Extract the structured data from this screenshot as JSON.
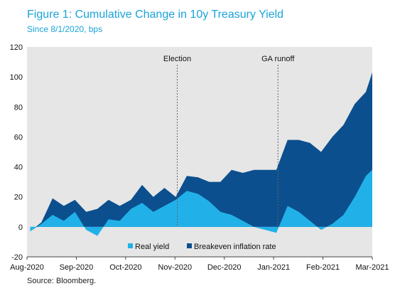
{
  "title": "Figure 1: Cumulative Change in 10y Treasury Yield",
  "subtitle": "Since 8/1/2020,  bps",
  "source": "Source: Bloomberg.",
  "colors": {
    "real_yield": "#21b1e8",
    "breakeven": "#0b4f8e",
    "plot_bg": "#e6e6e6",
    "title": "#1aa3d9"
  },
  "chart_data": {
    "type": "area",
    "title": "Figure 1: Cumulative Change in 10y Treasury Yield",
    "subtitle": "Since 8/1/2020,  bps",
    "xlabel": "",
    "ylabel": "",
    "ylim": [
      -20,
      120
    ],
    "yticks": [
      -20,
      0,
      20,
      40,
      60,
      80,
      100,
      120
    ],
    "xticks": [
      "Aug-2020",
      "Sep-2020",
      "Oct-2020",
      "Nov-2020",
      "Dec-2020",
      "Jan-2021",
      "Feb-2021",
      "Mar-2021"
    ],
    "xlim": [
      "2020-08-01",
      "2021-03-05"
    ],
    "grid": false,
    "legend": "bottom-center",
    "annotations": [
      {
        "label": "Election",
        "x": "2020-11-03"
      },
      {
        "label": "GA runoff",
        "x": "2021-01-05"
      }
    ],
    "x": [
      "2020-08-03",
      "2020-08-10",
      "2020-08-17",
      "2020-08-24",
      "2020-08-31",
      "2020-09-07",
      "2020-09-14",
      "2020-09-21",
      "2020-09-28",
      "2020-10-05",
      "2020-10-12",
      "2020-10-19",
      "2020-10-26",
      "2020-11-02",
      "2020-11-09",
      "2020-11-16",
      "2020-11-23",
      "2020-11-30",
      "2020-12-07",
      "2020-12-14",
      "2020-12-21",
      "2020-12-28",
      "2021-01-04",
      "2021-01-11",
      "2021-01-18",
      "2021-01-25",
      "2021-02-01",
      "2021-02-08",
      "2021-02-15",
      "2021-02-22",
      "2021-03-01",
      "2021-03-05"
    ],
    "series": [
      {
        "name": "Real yield",
        "values": [
          -3,
          2,
          8,
          4,
          10,
          -2,
          -6,
          5,
          4,
          12,
          16,
          10,
          14,
          18,
          24,
          22,
          17,
          10,
          8,
          4,
          0,
          -2,
          -4,
          14,
          10,
          4,
          -2,
          2,
          8,
          20,
          34,
          38
        ]
      },
      {
        "name": "Breakeven inflation rate",
        "values": [
          -3,
          3,
          19,
          14,
          18,
          10,
          12,
          18,
          14,
          18,
          28,
          20,
          26,
          20,
          34,
          33,
          30,
          30,
          38,
          36,
          38,
          38,
          38,
          58,
          58,
          56,
          50,
          60,
          68,
          82,
          90,
          103
        ]
      }
    ]
  }
}
